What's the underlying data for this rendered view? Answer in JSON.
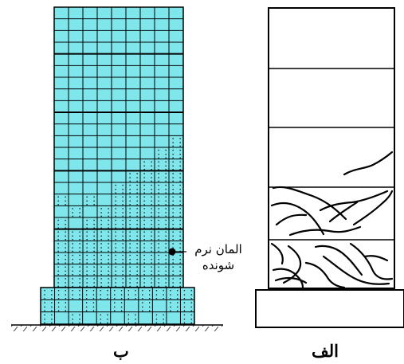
{
  "annotation": {
    "line1": "المان نرم",
    "line2": "شونده"
  },
  "panel_labels": {
    "left": "ب",
    "right": "الف"
  },
  "colors": {
    "mesh_fill": "#7fe6ec",
    "mesh_line": "#000000",
    "background": "#ffffff"
  }
}
